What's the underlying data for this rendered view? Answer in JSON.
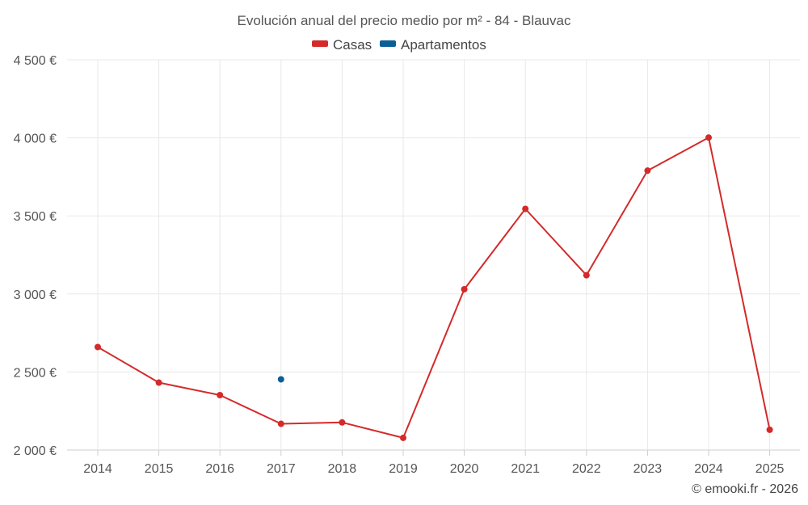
{
  "chart_data": {
    "type": "line",
    "title": "Evolución anual del precio medio por m² - 84 - Blauvac",
    "categories": [
      "2014",
      "2015",
      "2016",
      "2017",
      "2018",
      "2019",
      "2020",
      "2021",
      "2022",
      "2023",
      "2024",
      "2025"
    ],
    "y_ticks": [
      2000,
      2500,
      3000,
      3500,
      4000,
      4500
    ],
    "y_tick_labels": [
      "2 000 €",
      "2 500 €",
      "3 000 €",
      "3 500 €",
      "4 000 €",
      "4 500 €"
    ],
    "ylim": [
      2000,
      4500
    ],
    "grid": true,
    "legend_position": "top-center",
    "series": [
      {
        "name": "Casas",
        "color": "#d42a2a",
        "values": [
          2660,
          2432,
          2352,
          2168,
          2177,
          2078,
          3030,
          3545,
          3120,
          3790,
          4002,
          2130
        ]
      },
      {
        "name": "Apartamentos",
        "color": "#0b5f96",
        "values": [
          null,
          null,
          null,
          2453,
          null,
          null,
          null,
          null,
          null,
          null,
          null,
          null
        ]
      }
    ]
  },
  "credit": "© emooki.fr - 2026"
}
